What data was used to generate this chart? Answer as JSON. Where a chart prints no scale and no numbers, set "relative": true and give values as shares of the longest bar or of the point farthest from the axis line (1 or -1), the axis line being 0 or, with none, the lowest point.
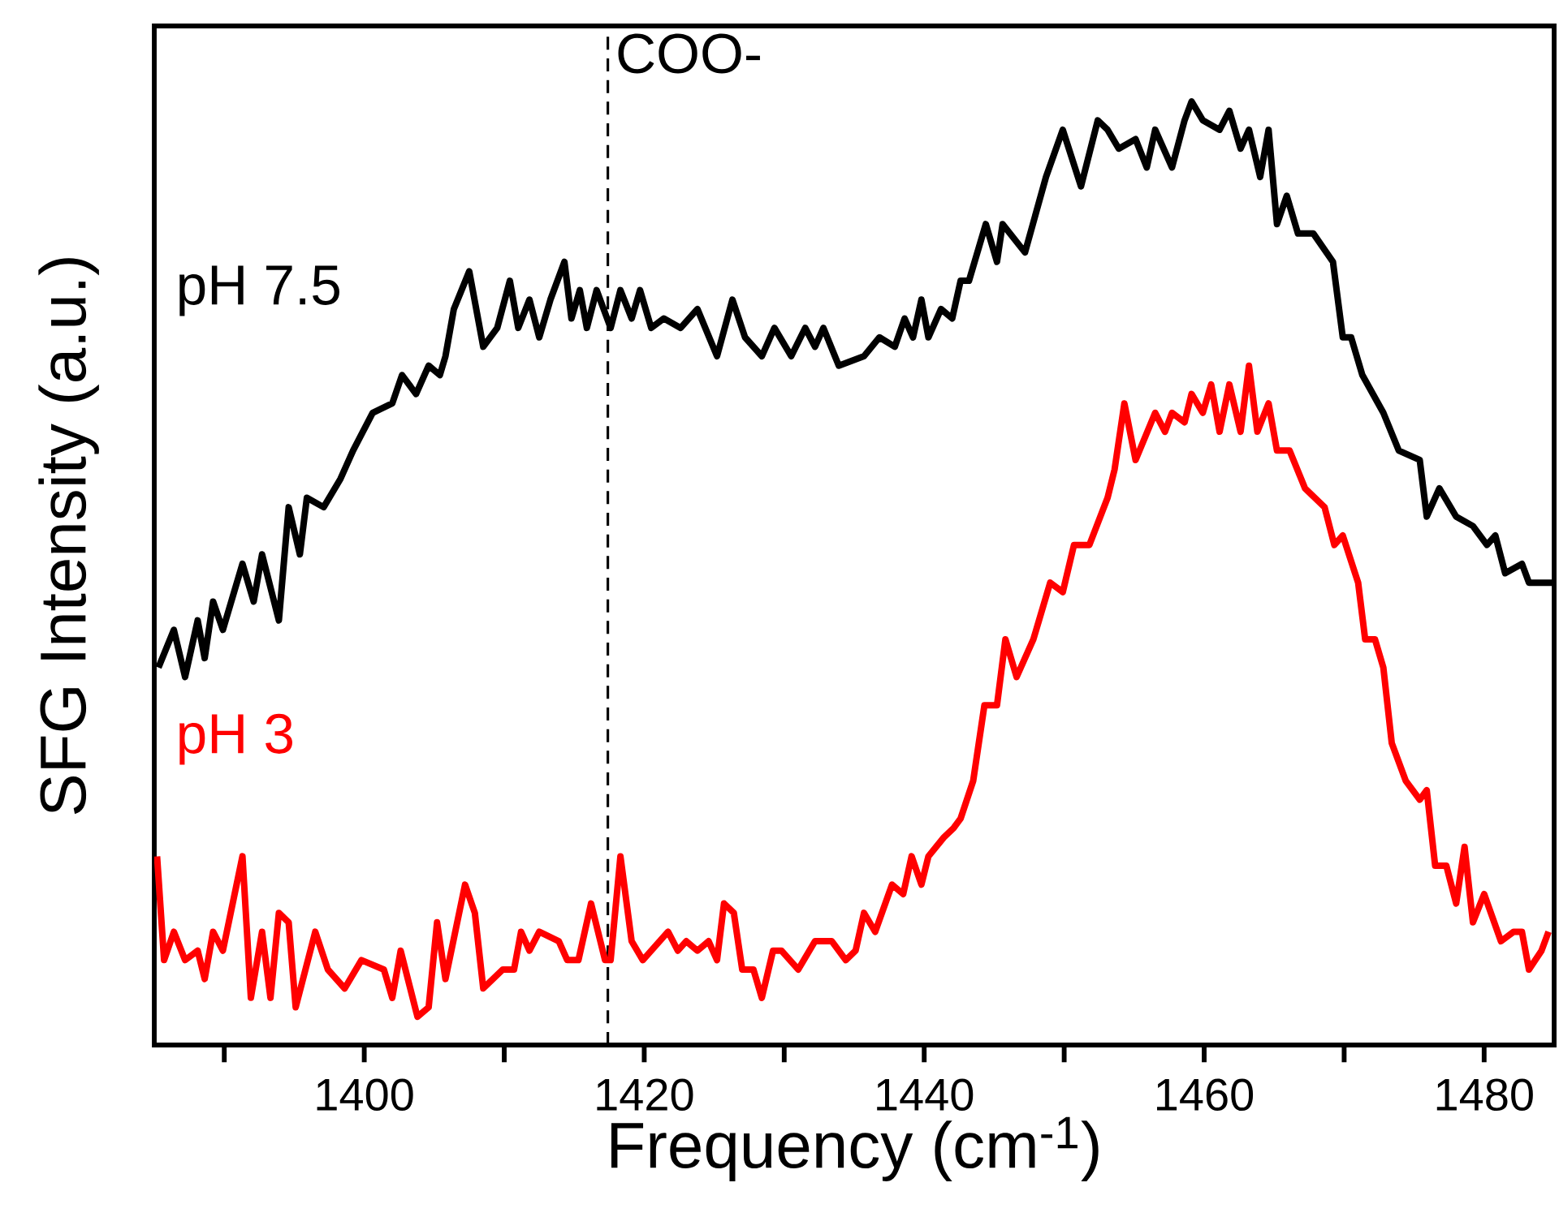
{
  "chart_data": {
    "type": "line",
    "xlabel": "Frequency (cm$^{-1}$)",
    "ylabel": "SFG Intensity (a.u.)",
    "relative": true,
    "tick_labels": "x",
    "grid": false,
    "marker": "none",
    "line_style": "solid",
    "xlim": [
      1385,
      1485
    ],
    "xticks": [
      {
        "value": 1390,
        "label": null
      },
      1400,
      {
        "value": 1410,
        "label": null
      },
      1420,
      {
        "value": 1430,
        "label": null
      },
      1440,
      {
        "value": 1450,
        "label": null
      },
      1460,
      {
        "value": 1470,
        "label": null
      },
      1480
    ],
    "ref_lines": [
      {
        "axis": "x",
        "value": 1417.4,
        "label": "COO-",
        "color": "#000000",
        "line_style": "dashed"
      }
    ],
    "series": [
      {
        "name": "pH 7.5",
        "color": "#000000",
        "x": [
          1385.3,
          1386.4,
          1387.2,
          1388.1,
          1388.6,
          1389.2,
          1389.9,
          1391.3,
          1392.1,
          1392.7,
          1393.9,
          1394.6,
          1395.4,
          1395.9,
          1397.1,
          1398.3,
          1399.2,
          1400.6,
          1402.0,
          1402.7,
          1403.7,
          1404.6,
          1405.4,
          1405.8,
          1406.4,
          1407.5,
          1408.5,
          1409.5,
          1410.4,
          1411.0,
          1411.8,
          1412.5,
          1413.3,
          1414.3,
          1414.8,
          1415.4,
          1415.9,
          1416.6,
          1417.6,
          1418.3,
          1419.1,
          1419.7,
          1420.5,
          1421.4,
          1422.6,
          1423.8,
          1425.2,
          1426.3,
          1427.2,
          1428.4,
          1429.3,
          1430.5,
          1431.5,
          1432.2,
          1432.8,
          1433.9,
          1435.7,
          1436.8,
          1437.9,
          1438.6,
          1439.2,
          1439.8,
          1440.3,
          1441.2,
          1442.0,
          1442.6,
          1443.2,
          1444.4,
          1445.2,
          1445.6,
          1447.2,
          1448.7,
          1449.9,
          1451.2,
          1452.4,
          1453.1,
          1453.9,
          1455.1,
          1455.9,
          1456.5,
          1457.7,
          1458.6,
          1459.1,
          1459.9,
          1461.1,
          1461.8,
          1462.6,
          1463.2,
          1464.0,
          1464.6,
          1465.2,
          1465.9,
          1466.7,
          1467.8,
          1469.2,
          1469.9,
          1470.5,
          1471.3,
          1472.8,
          1473.9,
          1475.4,
          1475.9,
          1476.8,
          1478.0,
          1479.2,
          1480.2,
          1480.8,
          1481.5,
          1482.7,
          1483.2,
          1484.9
        ],
        "values": [
          0.4,
          0.44,
          0.39,
          0.45,
          0.41,
          0.47,
          0.44,
          0.51,
          0.47,
          0.52,
          0.45,
          0.57,
          0.52,
          0.58,
          0.57,
          0.6,
          0.63,
          0.67,
          0.68,
          0.71,
          0.69,
          0.72,
          0.71,
          0.73,
          0.78,
          0.82,
          0.74,
          0.76,
          0.81,
          0.76,
          0.79,
          0.75,
          0.79,
          0.83,
          0.77,
          0.8,
          0.76,
          0.8,
          0.76,
          0.8,
          0.77,
          0.8,
          0.76,
          0.77,
          0.76,
          0.78,
          0.73,
          0.79,
          0.75,
          0.73,
          0.76,
          0.73,
          0.76,
          0.74,
          0.76,
          0.72,
          0.73,
          0.75,
          0.74,
          0.77,
          0.75,
          0.79,
          0.75,
          0.78,
          0.77,
          0.81,
          0.81,
          0.87,
          0.83,
          0.87,
          0.84,
          0.92,
          0.97,
          0.91,
          0.98,
          0.97,
          0.95,
          0.96,
          0.93,
          0.97,
          0.93,
          0.98,
          1.0,
          0.98,
          0.97,
          0.99,
          0.95,
          0.97,
          0.92,
          0.97,
          0.87,
          0.9,
          0.86,
          0.86,
          0.83,
          0.75,
          0.75,
          0.71,
          0.67,
          0.63,
          0.62,
          0.56,
          0.59,
          0.56,
          0.55,
          0.53,
          0.54,
          0.5,
          0.51,
          0.49,
          0.49
        ]
      },
      {
        "name": "pH 3",
        "color": "#ff0000",
        "x": [
          1385.2,
          1385.7,
          1386.4,
          1387.2,
          1388.1,
          1388.6,
          1389.2,
          1389.9,
          1391.3,
          1391.9,
          1392.7,
          1393.3,
          1393.9,
          1394.6,
          1395.1,
          1396.5,
          1397.4,
          1398.6,
          1399.8,
          1401.4,
          1402.0,
          1402.6,
          1403.8,
          1404.6,
          1405.2,
          1405.8,
          1407.2,
          1407.9,
          1408.5,
          1409.9,
          1410.7,
          1411.2,
          1411.8,
          1412.5,
          1413.9,
          1414.5,
          1415.3,
          1416.2,
          1417.2,
          1417.6,
          1418.3,
          1419.1,
          1419.9,
          1421.7,
          1422.4,
          1423.0,
          1423.8,
          1424.6,
          1425.2,
          1425.7,
          1426.4,
          1427.0,
          1427.8,
          1428.4,
          1429.2,
          1429.8,
          1431.0,
          1432.2,
          1433.4,
          1434.4,
          1435.1,
          1435.7,
          1436.5,
          1437.7,
          1438.5,
          1439.1,
          1439.8,
          1440.3,
          1441.4,
          1442.1,
          1442.6,
          1443.5,
          1444.3,
          1445.2,
          1445.8,
          1446.6,
          1447.8,
          1449.0,
          1449.9,
          1450.7,
          1451.8,
          1453.1,
          1453.6,
          1454.3,
          1455.1,
          1456.5,
          1457.2,
          1457.7,
          1458.6,
          1459.1,
          1459.9,
          1460.5,
          1461.1,
          1461.8,
          1462.6,
          1463.2,
          1463.8,
          1464.6,
          1465.2,
          1466.1,
          1467.2,
          1468.6,
          1469.3,
          1469.9,
          1471.0,
          1471.5,
          1472.2,
          1472.8,
          1473.4,
          1474.4,
          1475.4,
          1475.9,
          1476.5,
          1477.3,
          1478.0,
          1478.6,
          1479.2,
          1480.0,
          1481.2,
          1482.1,
          1482.7,
          1483.2,
          1484.1,
          1484.6
        ],
        "values": [
          0.2,
          0.09,
          0.12,
          0.09,
          0.1,
          0.07,
          0.12,
          0.1,
          0.2,
          0.05,
          0.12,
          0.05,
          0.14,
          0.13,
          0.04,
          0.12,
          0.08,
          0.06,
          0.09,
          0.08,
          0.05,
          0.1,
          0.03,
          0.04,
          0.13,
          0.07,
          0.17,
          0.14,
          0.06,
          0.08,
          0.08,
          0.12,
          0.1,
          0.12,
          0.11,
          0.09,
          0.09,
          0.15,
          0.09,
          0.09,
          0.2,
          0.11,
          0.09,
          0.12,
          0.1,
          0.11,
          0.1,
          0.11,
          0.09,
          0.15,
          0.14,
          0.08,
          0.08,
          0.05,
          0.1,
          0.1,
          0.08,
          0.11,
          0.11,
          0.09,
          0.1,
          0.14,
          0.12,
          0.17,
          0.16,
          0.2,
          0.17,
          0.2,
          0.22,
          0.23,
          0.24,
          0.28,
          0.36,
          0.36,
          0.43,
          0.39,
          0.43,
          0.49,
          0.48,
          0.53,
          0.53,
          0.58,
          0.61,
          0.68,
          0.62,
          0.67,
          0.65,
          0.67,
          0.66,
          0.69,
          0.67,
          0.7,
          0.65,
          0.7,
          0.65,
          0.72,
          0.65,
          0.68,
          0.63,
          0.63,
          0.59,
          0.57,
          0.53,
          0.54,
          0.49,
          0.43,
          0.43,
          0.4,
          0.32,
          0.28,
          0.26,
          0.27,
          0.19,
          0.19,
          0.15,
          0.21,
          0.13,
          0.16,
          0.11,
          0.12,
          0.12,
          0.08,
          0.1,
          0.12
        ]
      }
    ]
  }
}
